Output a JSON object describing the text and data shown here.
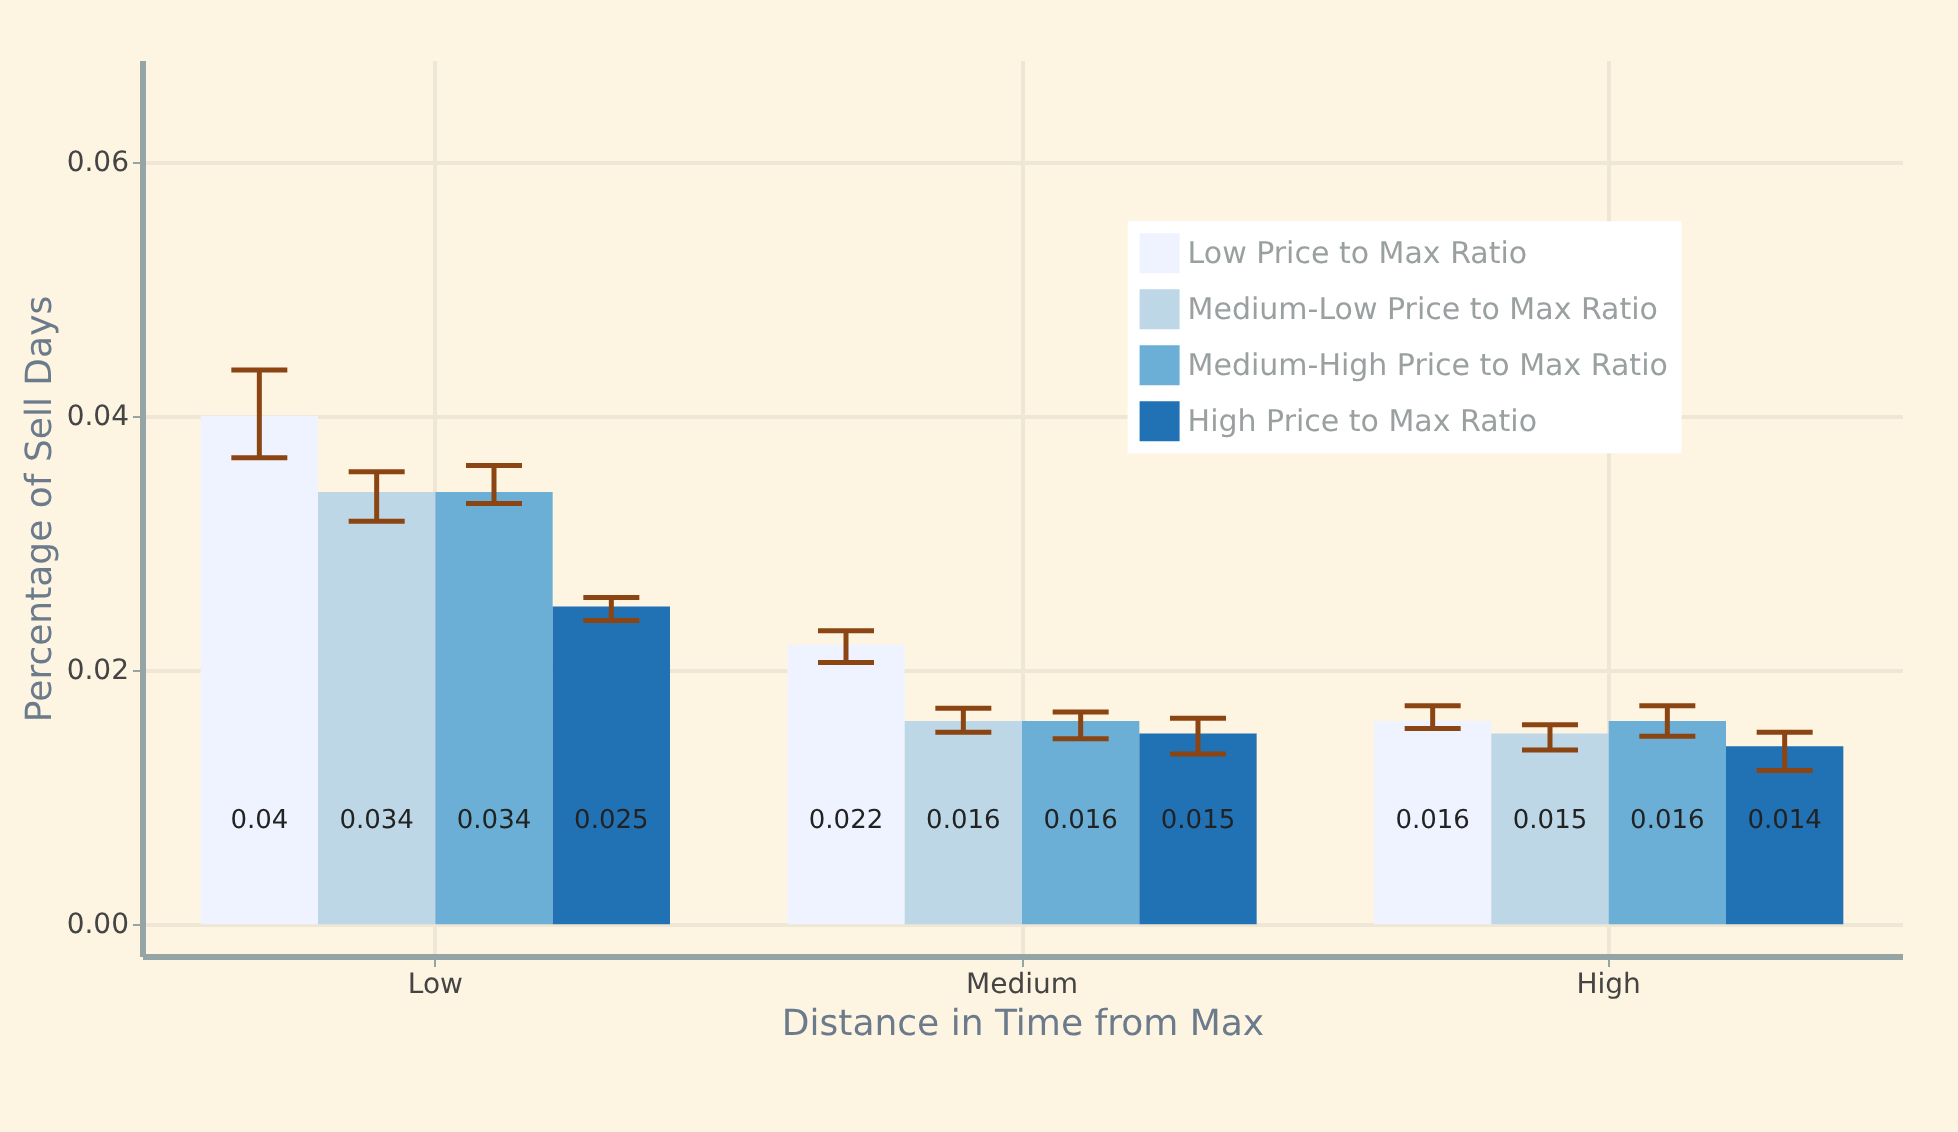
{
  "chart_data": {
    "type": "bar",
    "xlabel": "Distance in Time from Max",
    "ylabel": "Percentage of Sell Days",
    "categories": [
      "Low",
      "Medium",
      "High"
    ],
    "series": [
      {
        "name": "Low Price to Max Ratio",
        "color": "#eff3ff",
        "values": [
          0.04,
          0.022,
          0.016
        ],
        "errors": [
          [
            0.0367,
            0.0436
          ],
          [
            0.0206,
            0.0231
          ],
          [
            0.0154,
            0.0172
          ]
        ]
      },
      {
        "name": "Medium-Low Price to Max Ratio",
        "color": "#bdd7e7",
        "values": [
          0.034,
          0.016,
          0.015
        ],
        "errors": [
          [
            0.0317,
            0.0356
          ],
          [
            0.0151,
            0.017
          ],
          [
            0.0137,
            0.0157
          ]
        ]
      },
      {
        "name": "Medium-High Price to Max Ratio",
        "color": "#6baed6",
        "values": [
          0.034,
          0.016,
          0.016
        ],
        "errors": [
          [
            0.0331,
            0.0361
          ],
          [
            0.0146,
            0.0167
          ],
          [
            0.0148,
            0.0172
          ]
        ]
      },
      {
        "name": "High Price to Max Ratio",
        "color": "#2171b5",
        "values": [
          0.025,
          0.015,
          0.014
        ],
        "errors": [
          [
            0.0239,
            0.0257
          ],
          [
            0.0134,
            0.0162
          ],
          [
            0.0121,
            0.0151
          ]
        ]
      }
    ],
    "ylim": [
      -0.0025,
      0.068
    ],
    "yticks": [
      {
        "value": 0,
        "label": "0.00"
      },
      {
        "value": 0.02,
        "label": "0.02"
      },
      {
        "value": 0.04,
        "label": "0.04"
      },
      {
        "value": 0.06,
        "label": "0.06"
      }
    ],
    "grid": true,
    "legend": "top right",
    "data_labels": true
  }
}
